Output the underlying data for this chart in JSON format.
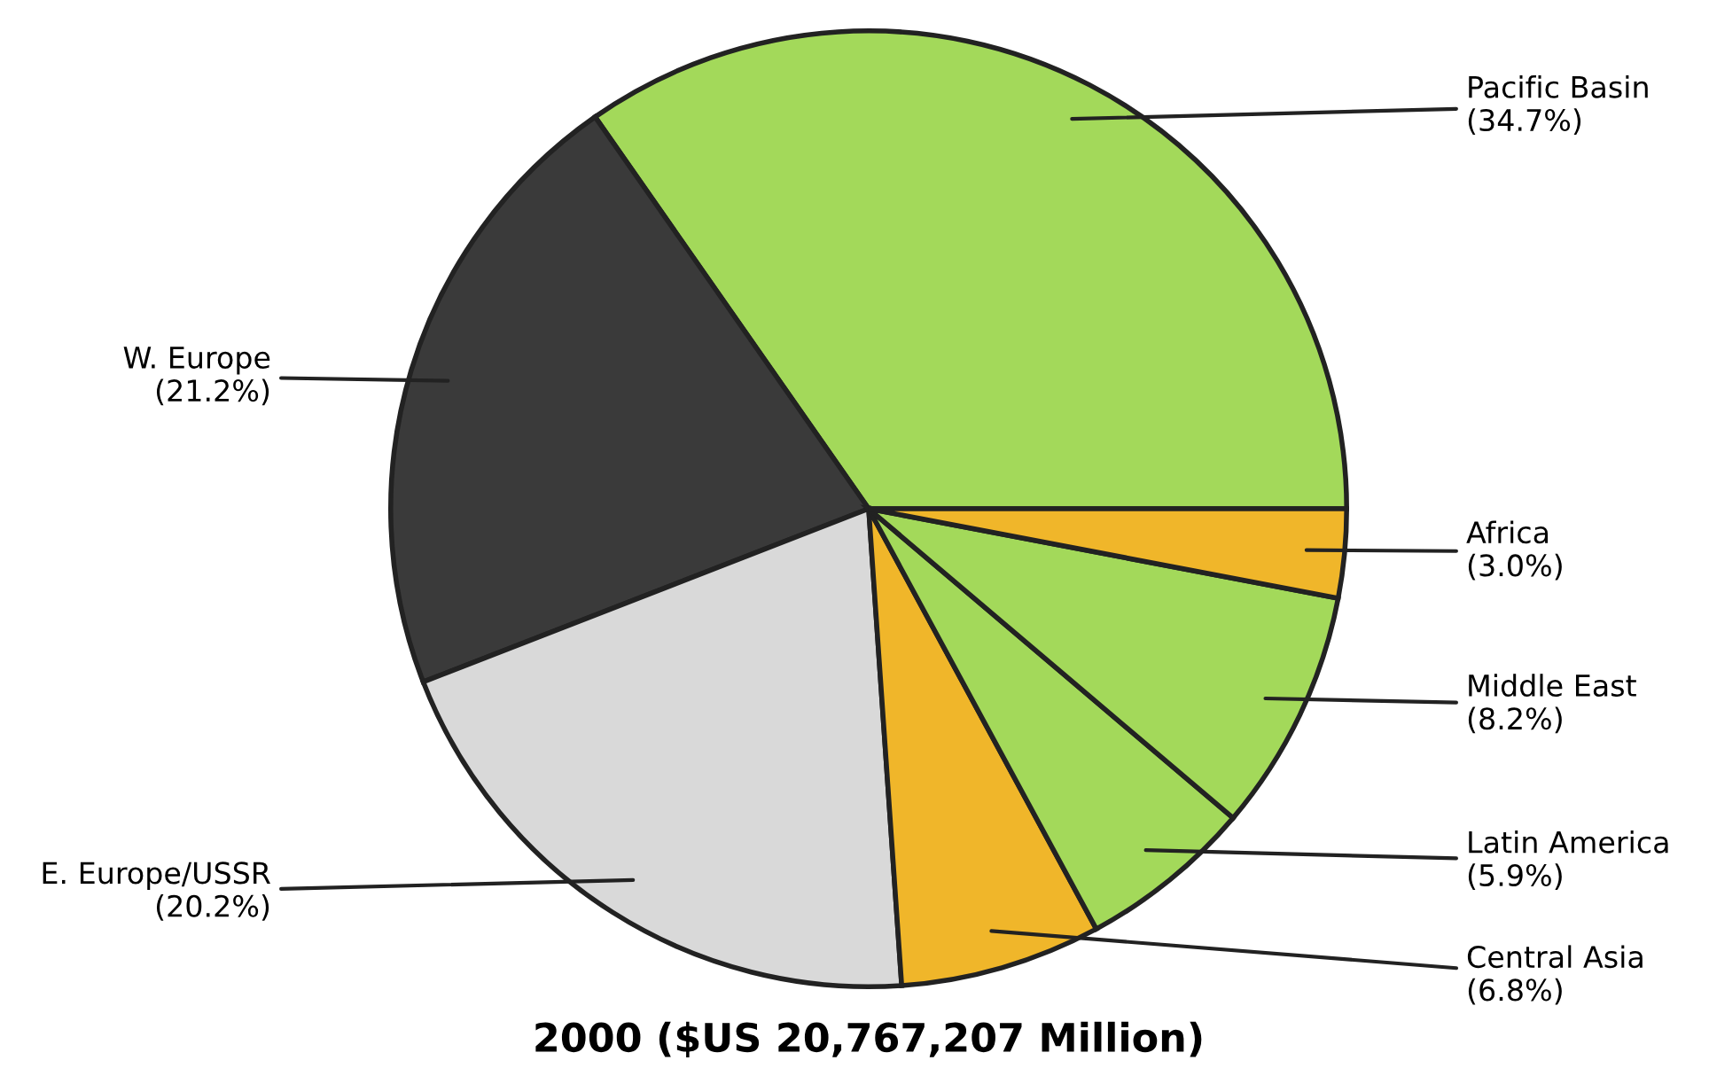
{
  "chart_data": {
    "type": "pie",
    "title": "2000 ($US 20,767,207 Million)",
    "categories": [
      "Pacific Basin",
      "W. Europe",
      "E. Europe/USSR",
      "Central Asia",
      "Latin America",
      "Middle East",
      "Africa"
    ],
    "values": [
      34.7,
      21.2,
      20.2,
      6.8,
      5.9,
      8.2,
      3.0
    ],
    "value_labels": [
      "(34.7%)",
      "(21.2%)",
      "(20.2%)",
      "(6.8%)",
      "(5.9%)",
      "(8.2%)",
      "(3.0%)"
    ],
    "colors": [
      "#a3d95a",
      "#3a3a3a",
      "#d9d9d9",
      "#f0b62a",
      "#a3d95a",
      "#a3d95a",
      "#f0b62a"
    ]
  }
}
